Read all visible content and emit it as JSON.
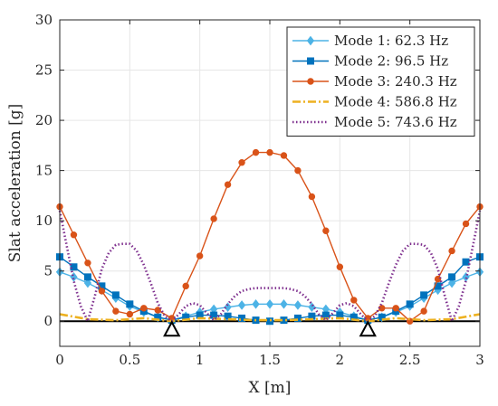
{
  "chart_data": {
    "type": "line",
    "title": "",
    "xlabel": "X [m]",
    "ylabel": "Slat acceleration [g]",
    "xlim": [
      0,
      3
    ],
    "ylim": [
      -2.5,
      30
    ],
    "xticks": [
      "0",
      "0.5",
      "1",
      "1.5",
      "2",
      "2.5",
      "3"
    ],
    "yticks": [
      "0",
      "5",
      "10",
      "15",
      "20",
      "25",
      "30"
    ],
    "grid": true,
    "legend_position": "top-right",
    "supports_x": [
      0.8,
      2.2
    ],
    "baseline_y": 0,
    "series": [
      {
        "name": "Mode 1: 62.3 Hz",
        "color": "#4db3e6",
        "line_style": "solid",
        "marker": "diamond",
        "x": [
          0,
          0.1,
          0.2,
          0.3,
          0.4,
          0.5,
          0.6,
          0.7,
          0.8,
          0.9,
          1.0,
          1.1,
          1.2,
          1.3,
          1.4,
          1.5,
          1.6,
          1.7,
          1.8,
          1.9,
          2.0,
          2.1,
          2.2,
          2.3,
          2.4,
          2.5,
          2.6,
          2.7,
          2.8,
          2.9,
          3.0
        ],
        "y": [
          4.9,
          4.4,
          3.8,
          3.1,
          2.3,
          1.5,
          0.9,
          0.4,
          0.1,
          0.5,
          0.9,
          1.2,
          1.4,
          1.6,
          1.7,
          1.7,
          1.7,
          1.6,
          1.4,
          1.2,
          0.9,
          0.5,
          0.1,
          0.4,
          0.9,
          1.5,
          2.3,
          3.1,
          3.8,
          4.4,
          4.9
        ]
      },
      {
        "name": "Mode 2: 96.5 Hz",
        "color": "#0072bd",
        "line_style": "solid",
        "marker": "square",
        "x": [
          0,
          0.1,
          0.2,
          0.3,
          0.4,
          0.5,
          0.6,
          0.7,
          0.8,
          0.9,
          1.0,
          1.1,
          1.2,
          1.3,
          1.4,
          1.5,
          1.6,
          1.7,
          1.8,
          1.9,
          2.0,
          2.1,
          2.2,
          2.3,
          2.4,
          2.5,
          2.6,
          2.7,
          2.8,
          2.9,
          3.0
        ],
        "y": [
          6.4,
          5.4,
          4.4,
          3.5,
          2.6,
          1.7,
          1.0,
          0.4,
          0.1,
          0.4,
          0.6,
          0.6,
          0.5,
          0.3,
          0.1,
          0.0,
          0.1,
          0.3,
          0.5,
          0.6,
          0.6,
          0.4,
          0.1,
          0.4,
          1.0,
          1.7,
          2.6,
          3.5,
          4.4,
          5.9,
          6.4
        ]
      },
      {
        "name": "Mode 3: 240.3 Hz",
        "color": "#d95319",
        "line_style": "solid",
        "marker": "circle",
        "x": [
          0,
          0.1,
          0.2,
          0.3,
          0.4,
          0.5,
          0.6,
          0.7,
          0.8,
          0.9,
          1.0,
          1.1,
          1.2,
          1.3,
          1.4,
          1.5,
          1.6,
          1.7,
          1.8,
          1.9,
          2.0,
          2.1,
          2.2,
          2.3,
          2.4,
          2.5,
          2.6,
          2.7,
          2.8,
          2.9,
          3.0
        ],
        "y": [
          11.4,
          8.6,
          5.8,
          3.0,
          1.0,
          0.7,
          1.3,
          1.1,
          0.3,
          3.5,
          6.5,
          10.2,
          13.6,
          15.8,
          16.8,
          16.8,
          16.5,
          15.0,
          12.4,
          9.0,
          5.4,
          2.1,
          0.3,
          1.3,
          1.3,
          0.0,
          1.0,
          4.2,
          7.0,
          9.7,
          11.4
        ]
      },
      {
        "name": "Mode 4: 586.8 Hz",
        "color": "#edb120",
        "line_style": "dashdot",
        "marker": "none",
        "x": [
          0,
          0.2,
          0.4,
          0.6,
          0.8,
          1.0,
          1.2,
          1.4,
          1.5,
          1.6,
          1.8,
          2.0,
          2.2,
          2.4,
          2.6,
          2.8,
          3.0
        ],
        "y": [
          0.7,
          0.2,
          0.1,
          0.3,
          0.0,
          0.3,
          0.2,
          0.1,
          0.1,
          0.1,
          0.2,
          0.3,
          0.0,
          0.3,
          0.1,
          0.2,
          0.7
        ]
      },
      {
        "name": "Mode 5: 743.6 Hz",
        "color": "#7e2f8e",
        "line_style": "dotted",
        "marker": "none",
        "x": [
          0,
          0.05,
          0.1,
          0.15,
          0.2,
          0.25,
          0.3,
          0.35,
          0.4,
          0.45,
          0.5,
          0.55,
          0.6,
          0.65,
          0.7,
          0.75,
          0.8,
          0.85,
          0.9,
          0.95,
          1.0,
          1.05,
          1.1,
          1.15,
          1.2,
          1.25,
          1.3,
          1.35,
          1.4,
          1.45,
          1.5,
          1.55,
          1.6,
          1.65,
          1.7,
          1.75,
          1.8,
          1.85,
          1.9,
          1.95,
          2.0,
          2.05,
          2.1,
          2.15,
          2.2,
          2.25,
          2.3,
          2.35,
          2.4,
          2.45,
          2.5,
          2.55,
          2.6,
          2.65,
          2.7,
          2.75,
          2.8,
          2.85,
          2.9,
          2.95,
          3.0
        ],
        "y": [
          11.0,
          7.5,
          4.0,
          1.5,
          0.0,
          2.5,
          5.2,
          6.8,
          7.6,
          7.7,
          7.7,
          7.0,
          5.6,
          3.8,
          1.8,
          0.5,
          0.0,
          0.7,
          1.5,
          1.8,
          1.6,
          0.8,
          0.1,
          0.7,
          1.7,
          2.5,
          3.0,
          3.2,
          3.3,
          3.3,
          3.3,
          3.3,
          3.3,
          3.2,
          3.0,
          2.5,
          1.7,
          0.7,
          0.1,
          0.8,
          1.6,
          1.8,
          1.5,
          0.7,
          0.0,
          0.5,
          1.8,
          3.8,
          5.6,
          7.0,
          7.7,
          7.7,
          7.6,
          6.8,
          5.2,
          2.5,
          0.0,
          1.5,
          4.0,
          7.5,
          11.0
        ]
      }
    ]
  }
}
